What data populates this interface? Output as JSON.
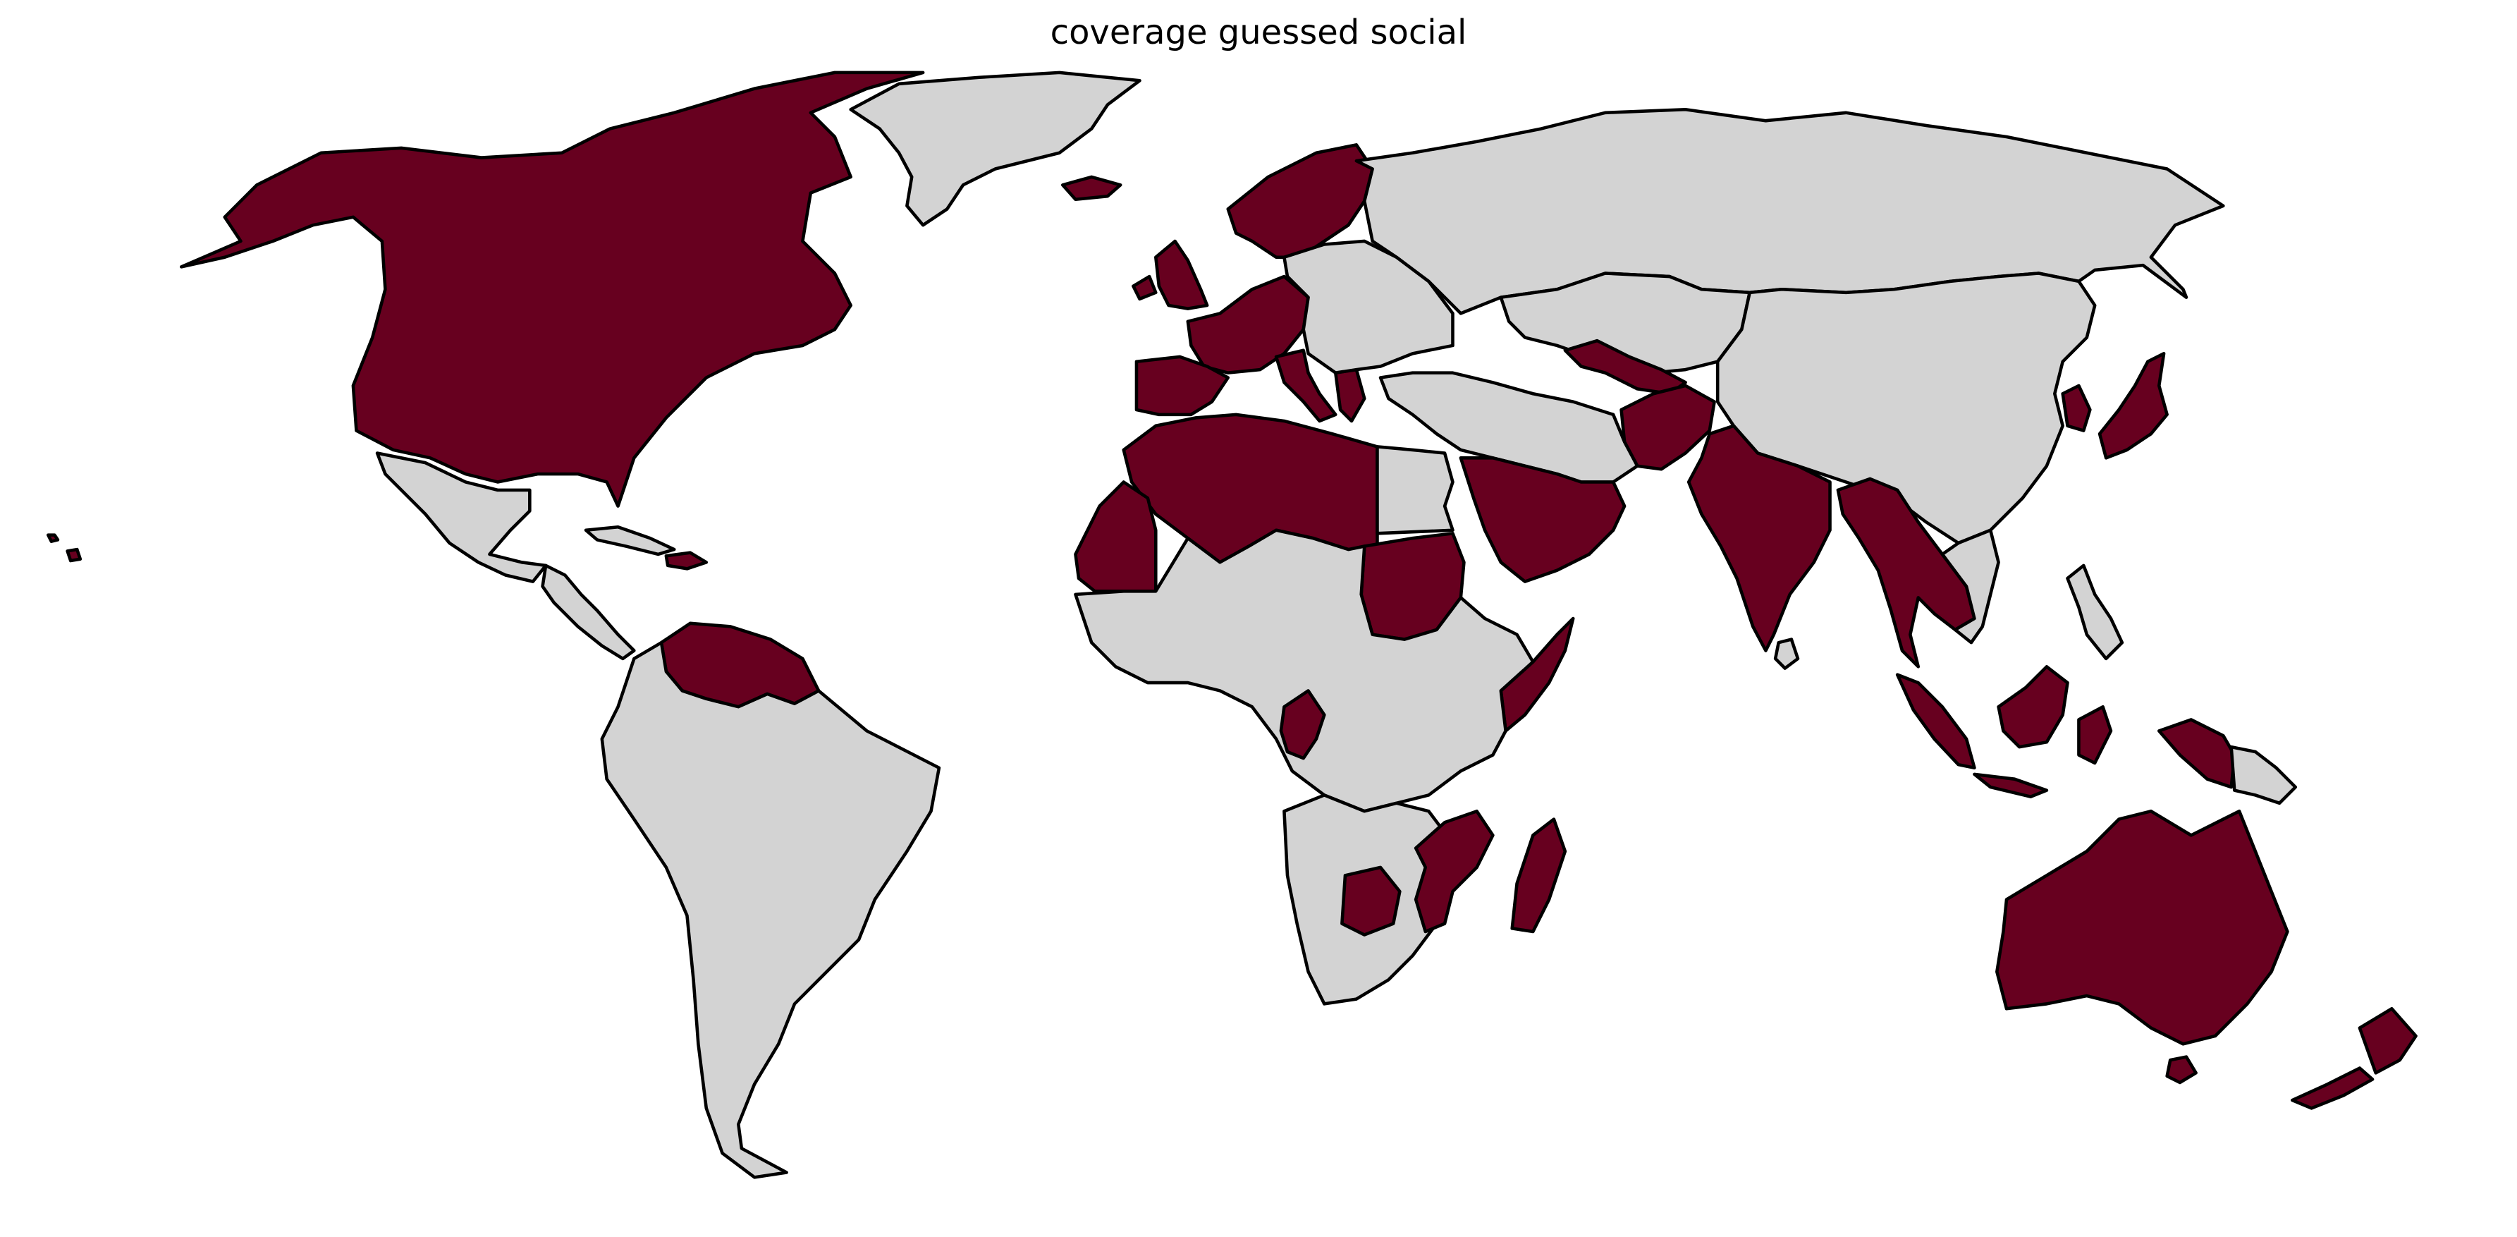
{
  "title": "coverage guessed social",
  "colors": {
    "covered": "#67001f",
    "not_covered": "#d3d3d3",
    "border": "#000000",
    "background": "#ffffff"
  },
  "legend": "none",
  "regions": [
    {
      "id": "north-america",
      "covered": true
    },
    {
      "id": "greenland",
      "covered": false
    },
    {
      "id": "mexico",
      "covered": false
    },
    {
      "id": "central-america",
      "covered": false
    },
    {
      "id": "cuba",
      "covered": false
    },
    {
      "id": "hispaniola",
      "covered": true
    },
    {
      "id": "venezuela-guyana",
      "covered": true
    },
    {
      "id": "south-america",
      "covered": false
    },
    {
      "id": "iceland",
      "covered": true
    },
    {
      "id": "scandinavia",
      "covered": true
    },
    {
      "id": "british-isles",
      "covered": true
    },
    {
      "id": "western-europe",
      "covered": true
    },
    {
      "id": "iberia",
      "covered": true
    },
    {
      "id": "italy",
      "covered": true
    },
    {
      "id": "greece",
      "covered": true
    },
    {
      "id": "eastern-europe",
      "covered": false
    },
    {
      "id": "russia",
      "covered": false
    },
    {
      "id": "central-asia",
      "covered": false
    },
    {
      "id": "uzbekistan",
      "covered": true
    },
    {
      "id": "afghanistan",
      "covered": true
    },
    {
      "id": "china-mongolia",
      "covered": false
    },
    {
      "id": "korea",
      "covered": true
    },
    {
      "id": "japan",
      "covered": true
    },
    {
      "id": "iran-middle-east",
      "covered": false
    },
    {
      "id": "arabia",
      "covered": true
    },
    {
      "id": "india",
      "covered": true
    },
    {
      "id": "sri-lanka",
      "covered": false
    },
    {
      "id": "myanmar-thailand",
      "covered": true
    },
    {
      "id": "indochina",
      "covered": false
    },
    {
      "id": "north-africa",
      "covered": true
    },
    {
      "id": "mauritania-western-sahara",
      "covered": true
    },
    {
      "id": "egypt",
      "covered": false
    },
    {
      "id": "sudan",
      "covered": true
    },
    {
      "id": "somalia",
      "covered": true
    },
    {
      "id": "central-africa",
      "covered": false
    },
    {
      "id": "congo",
      "covered": true
    },
    {
      "id": "southern-africa",
      "covered": false
    },
    {
      "id": "botswana",
      "covered": true
    },
    {
      "id": "mozambique",
      "covered": true
    },
    {
      "id": "madagascar",
      "covered": true
    },
    {
      "id": "sumatra",
      "covered": true
    },
    {
      "id": "borneo",
      "covered": true
    },
    {
      "id": "sulawesi-new-guinea-west",
      "covered": true
    },
    {
      "id": "papua-new-guinea",
      "covered": false
    },
    {
      "id": "philippines",
      "covered": false
    },
    {
      "id": "australia",
      "covered": true
    },
    {
      "id": "tasmania",
      "covered": true
    },
    {
      "id": "new-zealand",
      "covered": true
    },
    {
      "id": "hawaii",
      "covered": true
    }
  ]
}
